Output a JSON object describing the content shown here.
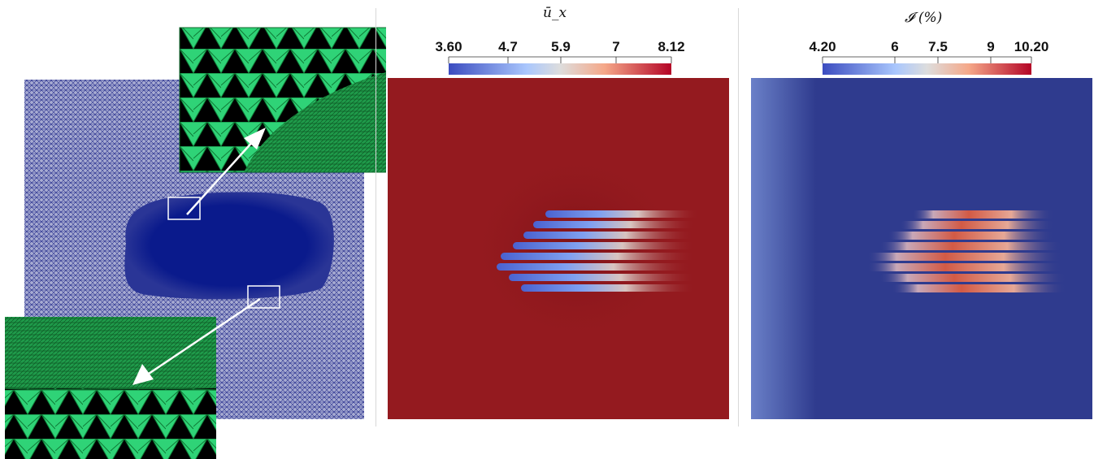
{
  "colors": {
    "mesh_fill": "#0b1a8c",
    "mesh_background": "#9aa0c8",
    "zoom_green": "#1fcf6a",
    "ux_field": "#941a1f",
    "ti_field": "#2f3b8e",
    "wake_blue": "#3b4cc0",
    "wake_red": "#c83a30"
  },
  "panels": {
    "ux": {
      "colorbar_title": "ū_x",
      "ticks": [
        "3.60",
        "4.7",
        "5.9",
        "7",
        "8.12"
      ]
    },
    "ti": {
      "colorbar_title": "𝓘 (%)",
      "ticks": [
        "4.20",
        "6",
        "7.5",
        "9",
        "10.20"
      ]
    }
  }
}
